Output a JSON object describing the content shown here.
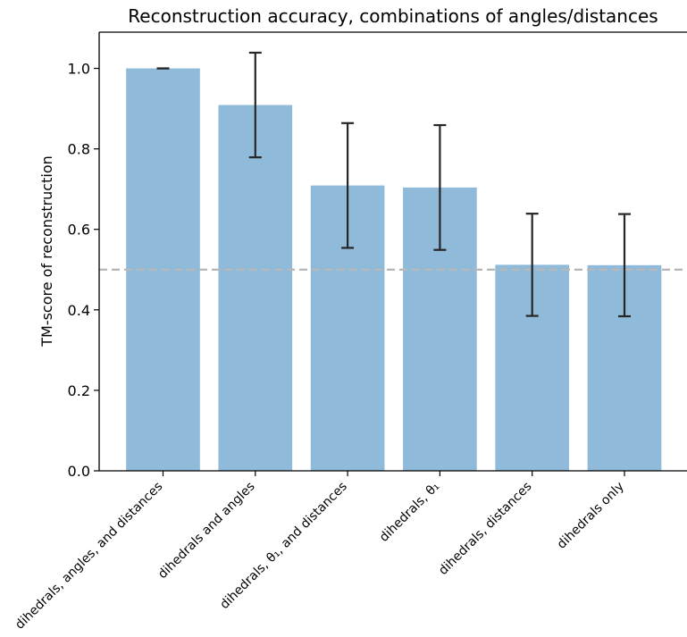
{
  "chart_data": {
    "type": "bar",
    "title": "Reconstruction accuracy, combinations of angles/distances",
    "xlabel": "",
    "ylabel": "TM-score of reconstruction",
    "categories": [
      "dihedrals, angles, and distances",
      "dihedrals and angles",
      "dihedrals, θ₁, and distances",
      "dihedrals, θ₁",
      "dihedrals, distances",
      "dihedrals only"
    ],
    "values": [
      1.0,
      0.909,
      0.709,
      0.704,
      0.512,
      0.511
    ],
    "errors": [
      0.0,
      0.13,
      0.155,
      0.155,
      0.127,
      0.127
    ],
    "ylim": [
      0,
      1.09
    ],
    "yticks": [
      "0.0",
      "0.2",
      "0.4",
      "0.6",
      "0.8",
      "1.0"
    ],
    "reference_line": 0.5,
    "grid": false,
    "colors": {
      "bar": "#8fbad9",
      "errorbar": "#262626",
      "reference_line": "#b8b8b8",
      "axis": "#000000"
    }
  }
}
